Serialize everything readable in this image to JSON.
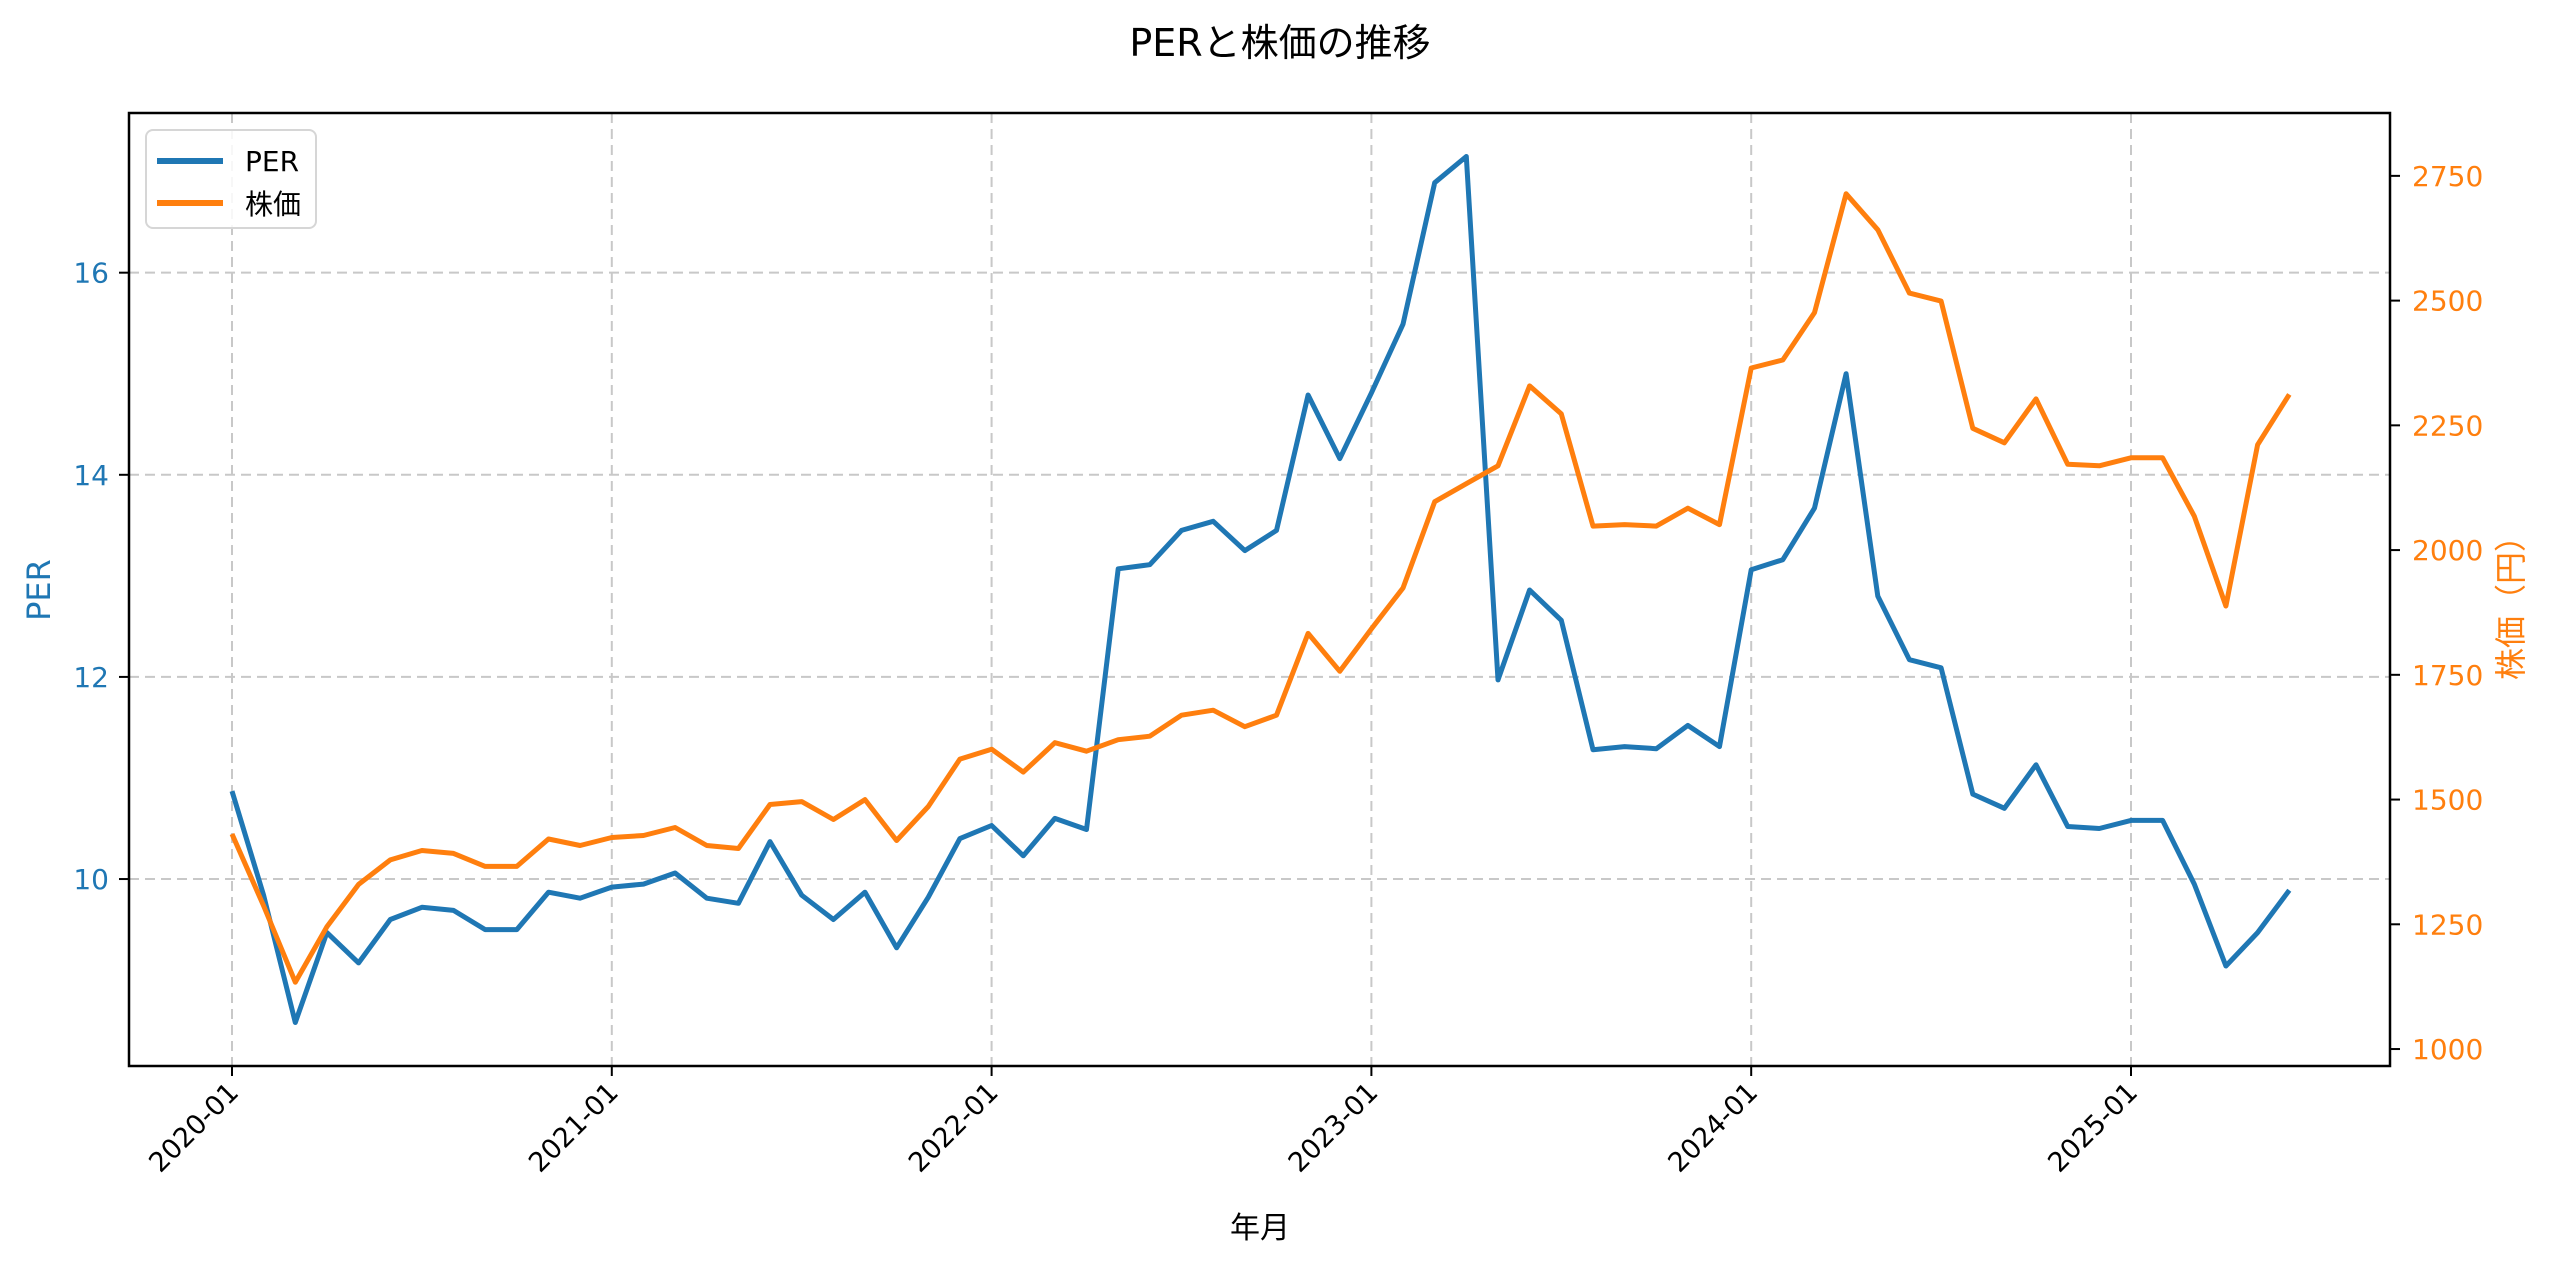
{
  "chart_data": {
    "type": "line",
    "title": "PERと株価の推移",
    "xlabel": "年月",
    "ylabel_left": "PER",
    "ylabel_right": "株価（円）",
    "x_tick_labels": [
      "2020-01",
      "2021-01",
      "2022-01",
      "2023-01",
      "2024-01",
      "2025-01"
    ],
    "y_left_ticks": [
      10,
      12,
      14,
      16
    ],
    "y_right_ticks": [
      1000,
      1250,
      1500,
      1750,
      2000,
      2250,
      2500,
      2750
    ],
    "ylim_left": [
      8.15,
      17.58
    ],
    "ylim_right": [
      966,
      2876
    ],
    "grid": true,
    "legend_position": "upper left",
    "x": [
      "2020-01",
      "2020-02",
      "2020-03",
      "2020-04",
      "2020-05",
      "2020-06",
      "2020-07",
      "2020-08",
      "2020-09",
      "2020-10",
      "2020-11",
      "2020-12",
      "2021-01",
      "2021-02",
      "2021-03",
      "2021-04",
      "2021-05",
      "2021-06",
      "2021-07",
      "2021-08",
      "2021-09",
      "2021-10",
      "2021-11",
      "2021-12",
      "2022-01",
      "2022-02",
      "2022-03",
      "2022-04",
      "2022-05",
      "2022-06",
      "2022-07",
      "2022-08",
      "2022-09",
      "2022-10",
      "2022-11",
      "2022-12",
      "2023-01",
      "2023-02",
      "2023-03",
      "2023-04",
      "2023-05",
      "2023-06",
      "2023-07",
      "2023-08",
      "2023-09",
      "2023-10",
      "2023-11",
      "2023-12",
      "2024-01",
      "2024-02",
      "2024-03",
      "2024-04",
      "2024-05",
      "2024-06",
      "2024-07",
      "2024-08",
      "2024-09",
      "2024-10",
      "2024-11",
      "2024-12",
      "2025-01",
      "2025-02",
      "2025-03",
      "2025-04",
      "2025-05",
      "2025-06"
    ],
    "series": [
      {
        "name": "PER",
        "axis": "left",
        "color": "#1f77b4",
        "values": [
          10.87,
          9.84,
          8.58,
          9.47,
          9.17,
          9.6,
          9.72,
          9.69,
          9.5,
          9.5,
          9.87,
          9.81,
          9.92,
          9.95,
          10.06,
          9.81,
          9.76,
          10.37,
          9.84,
          9.6,
          9.87,
          9.32,
          9.82,
          10.4,
          10.53,
          10.23,
          10.6,
          10.49,
          13.07,
          13.11,
          13.45,
          13.54,
          13.25,
          13.45,
          14.79,
          14.16,
          14.81,
          15.49,
          16.89,
          17.15,
          11.97,
          12.86,
          12.56,
          11.28,
          11.31,
          11.29,
          11.52,
          11.31,
          13.06,
          13.16,
          13.67,
          15.0,
          12.8,
          12.17,
          12.09,
          10.84,
          10.7,
          11.13,
          10.52,
          10.5,
          10.58,
          10.58,
          9.95,
          9.14,
          9.47,
          9.89
        ]
      },
      {
        "name": "株価",
        "axis": "right",
        "color": "#ff7f0e",
        "values": [
          1431,
          1287,
          1134,
          1245,
          1330,
          1379,
          1398,
          1392,
          1366,
          1366,
          1421,
          1408,
          1424,
          1428,
          1444,
          1408,
          1402,
          1490,
          1496,
          1460,
          1500,
          1418,
          1486,
          1581,
          1601,
          1555,
          1614,
          1597,
          1620,
          1627,
          1669,
          1679,
          1646,
          1669,
          1833,
          1757,
          1842,
          1924,
          2097,
          2133,
          2169,
          2329,
          2273,
          2048,
          2051,
          2048,
          2084,
          2051,
          2365,
          2381,
          2476,
          2714,
          2642,
          2515,
          2499,
          2244,
          2215,
          2303,
          2172,
          2169,
          2185,
          2185,
          2068,
          1888,
          2211,
          2312
        ]
      }
    ]
  },
  "legend": {
    "items": [
      {
        "label": "PER",
        "color": "#1f77b4"
      },
      {
        "label": "株価",
        "color": "#ff7f0e"
      }
    ]
  },
  "colors": {
    "per": "#1f77b4",
    "price": "#ff7f0e",
    "grid": "#c8c8c8",
    "axis": "#000000"
  }
}
